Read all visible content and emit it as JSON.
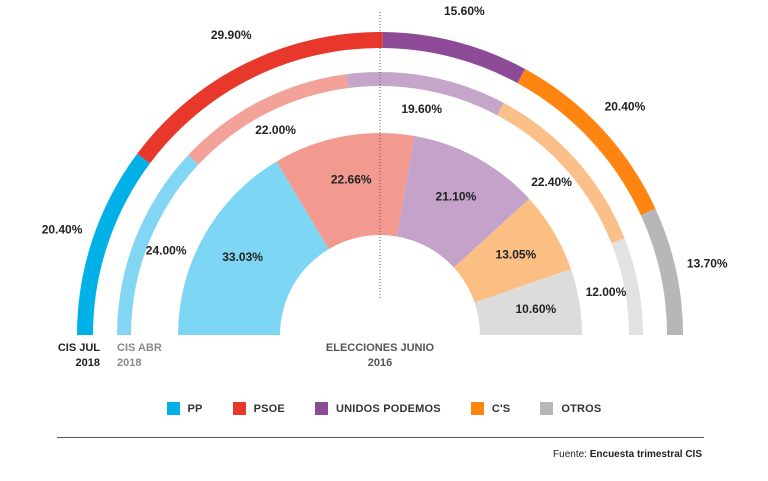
{
  "chart_data": {
    "type": "semicircle-donut",
    "colors": {
      "PP": "#00b1e8",
      "PSOE": "#e8372b",
      "UNIDOS PODEMOS": "#8c4a97",
      "C'S": "#ff8410",
      "OTROS": "#b7b7b7"
    },
    "rings": [
      {
        "name_line1": "CIS JUL",
        "name_line2": "2018",
        "parties": [
          "PP",
          "PSOE",
          "UNIDOS PODEMOS",
          "C'S",
          "OTROS"
        ],
        "values": [
          20.4,
          29.9,
          15.6,
          20.4,
          13.7
        ],
        "labels": [
          "20.40%",
          "29.90%",
          "15.60%",
          "20.40%",
          "13.70%"
        ],
        "colors": [
          "#00b1e8",
          "#e8372b",
          "#8c4a97",
          "#ff8410",
          "#b7b7b7"
        ]
      },
      {
        "name_line1": "CIS ABR",
        "name_line2": "2018",
        "parties": [
          "PP",
          "PSOE",
          "UNIDOS PODEMOS",
          "C'S",
          "OTROS"
        ],
        "values": [
          24.0,
          22.0,
          19.6,
          22.4,
          12.0
        ],
        "labels": [
          "24.00%",
          "22.00%",
          "19.60%",
          "22.40%",
          "12.00%"
        ],
        "colors": [
          "#82d6f3",
          "#f3a29a",
          "#c6a5cb",
          "#fbc08a",
          "#e2e2e2"
        ]
      },
      {
        "name_line1": "ELECCIONES JUNIO",
        "name_line2": "2016",
        "parties": [
          "PP",
          "PSOE",
          "UNIDOS PODEMOS",
          "C'S",
          "OTROS"
        ],
        "values": [
          33.03,
          22.66,
          21.1,
          13.05,
          10.6
        ],
        "labels": [
          "33.03%",
          "22.66%",
          "21.10%",
          "13.05%",
          "10.60%"
        ],
        "colors": [
          "#7dd6f3",
          "#f39a90",
          "#c4a2c9",
          "#fbbf83",
          "#dcdcdc"
        ]
      }
    ],
    "legend": [
      {
        "label": "PP",
        "color": "#00b1e8"
      },
      {
        "label": "PSOE",
        "color": "#e8372b"
      },
      {
        "label": "UNIDOS PODEMOS",
        "color": "#8c4a97"
      },
      {
        "label": "C'S",
        "color": "#ff8410"
      },
      {
        "label": "OTROS",
        "color": "#b7b7b7"
      }
    ]
  },
  "source": {
    "prefix": "Fuente: ",
    "name": "Encuesta trimestral CIS"
  }
}
